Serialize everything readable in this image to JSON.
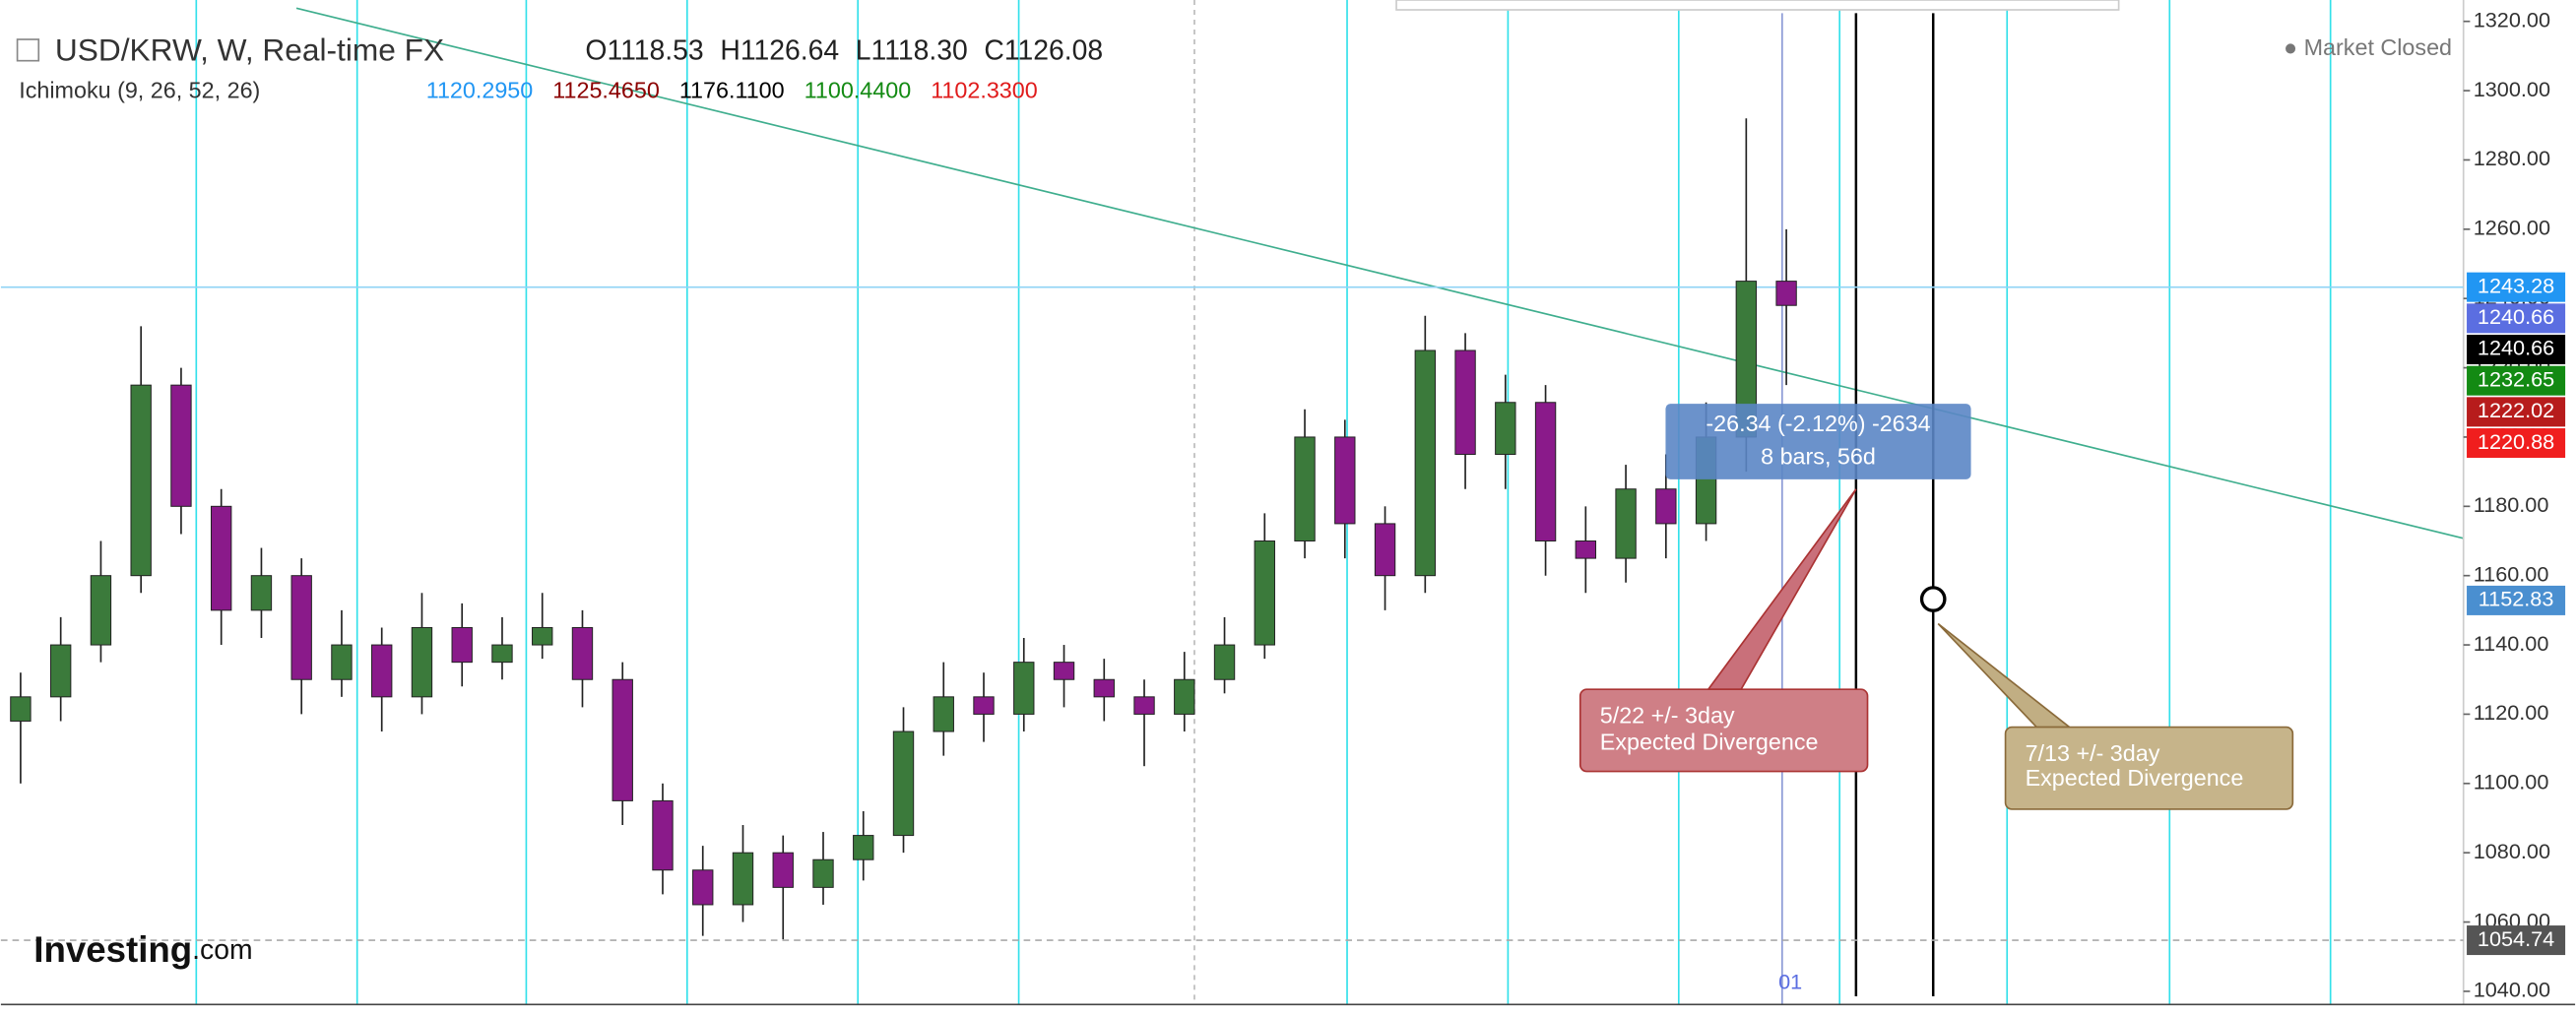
{
  "chart_data": {
    "type": "candlestick",
    "title": "USD/KRW, W, Real-time FX",
    "header": {
      "o_label": "O",
      "o": "1118.53",
      "h_label": "H",
      "h": "1126.64",
      "l_label": "L",
      "l": "1118.30",
      "c_label": "C",
      "c": "1126.08"
    },
    "indicator": {
      "name": "Ichimoku (9, 26, 52, 26)",
      "values": [
        "1120.2950",
        "1125.4650",
        "1176.1100",
        "1100.4400",
        "1102.3300"
      ],
      "colors": [
        "#2196f3",
        "#8b0000",
        "#000000",
        "#138a13",
        "#e01b1b"
      ]
    },
    "status": "Market Closed",
    "logo": {
      "brand": "Investing",
      "suffix": ".com"
    },
    "x_marker": "01",
    "measure": [
      "-26.34 (-2.12%) -2634",
      "8 bars, 56d"
    ],
    "callouts": [
      [
        "5/22  +/- 3day",
        "Expected Divergence"
      ],
      [
        "7/13  +/- 3day",
        "Expected Divergence"
      ]
    ],
    "up_color": "#3b7a3b",
    "down_color": "#8a1a8a",
    "open": [
      1118,
      1125,
      1140,
      1160,
      1215,
      1180,
      1150,
      1160,
      1130,
      1140,
      1125,
      1145,
      1135,
      1140,
      1145,
      1130,
      1095,
      1075,
      1065,
      1080,
      1070,
      1078,
      1085,
      1115,
      1125,
      1120,
      1135,
      1130,
      1125,
      1120,
      1130,
      1140,
      1170,
      1200,
      1175,
      1160,
      1225,
      1195,
      1210,
      1170,
      1165,
      1185,
      1175,
      1200,
      1245
    ],
    "high": [
      1132,
      1148,
      1170,
      1232,
      1220,
      1185,
      1168,
      1165,
      1150,
      1145,
      1155,
      1152,
      1148,
      1155,
      1150,
      1135,
      1100,
      1082,
      1088,
      1085,
      1086,
      1092,
      1122,
      1135,
      1132,
      1142,
      1140,
      1136,
      1130,
      1138,
      1148,
      1178,
      1208,
      1205,
      1180,
      1235,
      1230,
      1218,
      1215,
      1180,
      1192,
      1195,
      1210,
      1292,
      1260
    ],
    "low": [
      1100,
      1118,
      1135,
      1155,
      1172,
      1140,
      1142,
      1120,
      1125,
      1115,
      1120,
      1128,
      1130,
      1136,
      1122,
      1088,
      1068,
      1056,
      1060,
      1055,
      1065,
      1072,
      1080,
      1108,
      1112,
      1115,
      1122,
      1118,
      1105,
      1115,
      1126,
      1136,
      1165,
      1165,
      1150,
      1155,
      1185,
      1185,
      1160,
      1155,
      1158,
      1165,
      1170,
      1190,
      1215
    ],
    "close": [
      1125,
      1140,
      1160,
      1215,
      1180,
      1150,
      1160,
      1130,
      1140,
      1125,
      1145,
      1135,
      1140,
      1145,
      1130,
      1095,
      1075,
      1065,
      1080,
      1070,
      1078,
      1085,
      1115,
      1125,
      1120,
      1135,
      1130,
      1125,
      1120,
      1130,
      1140,
      1170,
      1200,
      1175,
      1160,
      1225,
      1195,
      1210,
      1170,
      1165,
      1185,
      1175,
      1200,
      1245,
      1238
    ],
    "ylim": [
      1036,
      1322
    ],
    "yticks": [
      {
        "value": 1040,
        "label": "1040.00"
      },
      {
        "value": 1060,
        "label": "1060.00"
      },
      {
        "value": 1080,
        "label": "1080.00"
      },
      {
        "value": 1100,
        "label": "1100.00"
      },
      {
        "value": 1120,
        "label": "1120.00"
      },
      {
        "value": 1140,
        "label": "1140.00"
      },
      {
        "value": 1160,
        "label": "1160.00"
      },
      {
        "value": 1180,
        "label": "1180.00"
      },
      {
        "value": 1200,
        "label": "1200.00"
      },
      {
        "value": 1220,
        "label": "1220.00"
      },
      {
        "value": 1240,
        "label": "1240.00"
      },
      {
        "value": 1260,
        "label": "1260.00"
      },
      {
        "value": 1280,
        "label": "1280.00"
      },
      {
        "value": 1300,
        "label": "1300.00"
      },
      {
        "value": 1320,
        "label": "1320.00"
      }
    ],
    "price_tags": [
      {
        "value": 1243.28,
        "color": "#2196f3"
      },
      {
        "value": 1240.66,
        "color": "#5b6ee1"
      },
      {
        "value": 1240.66,
        "color": "#000000"
      },
      {
        "value": 1232.65,
        "color": "#138a13"
      },
      {
        "value": 1222.02,
        "color": "#b71c1c"
      },
      {
        "value": 1220.88,
        "color": "#f01e1e"
      },
      {
        "value": 1152.83,
        "color": "#4a8fd0"
      },
      {
        "value": 1054.74,
        "color": "#555555"
      }
    ]
  }
}
